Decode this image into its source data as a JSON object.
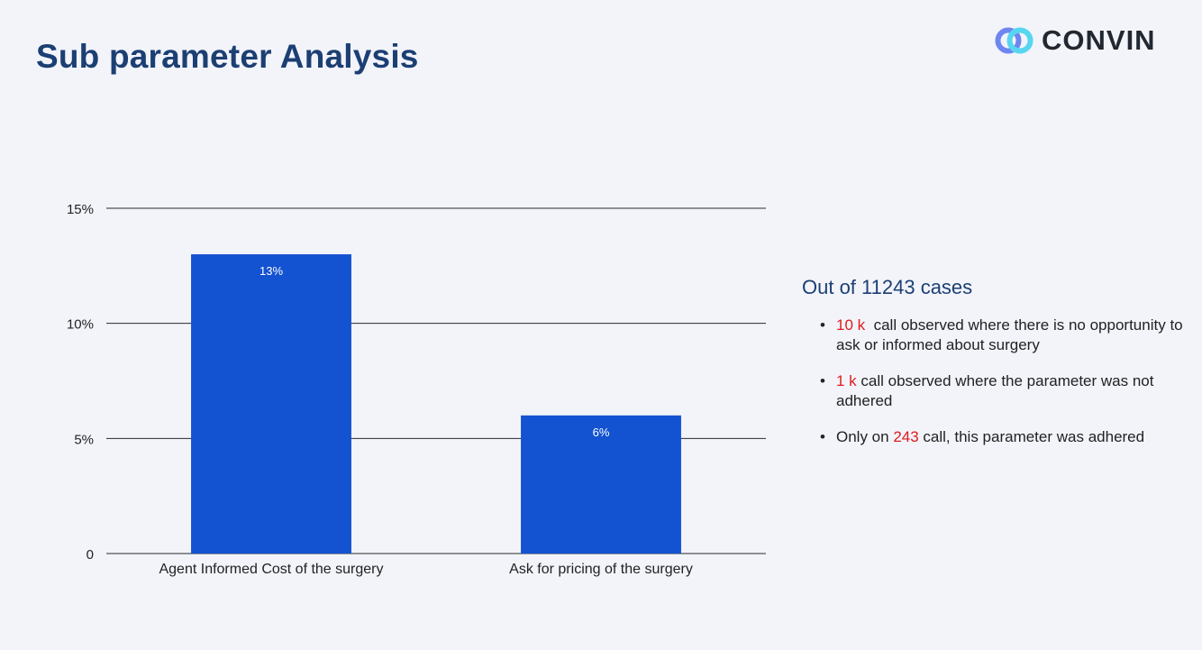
{
  "page": {
    "title": "Sub parameter Analysis"
  },
  "logo": {
    "text": "CONVIN"
  },
  "colors": {
    "bar": "#1352d0",
    "highlight": "#e01b1b",
    "title": "#1c3f73",
    "background": "#f2f4fa"
  },
  "summary": {
    "heading": "Out of 11243 cases",
    "bullets": [
      {
        "highlight": "10 k",
        "pre": "",
        "post": "  call observed where there is no opportunity to ask or informed about surgery"
      },
      {
        "highlight": "1 k",
        "pre": "",
        "post": " call observed where the parameter was not adhered"
      },
      {
        "highlight": "243",
        "pre": "Only on ",
        "post": " call, this parameter was adhered"
      }
    ]
  },
  "chart_data": {
    "type": "bar",
    "categories": [
      "Agent Informed Cost of the surgery",
      "Ask for pricing of the surgery"
    ],
    "values": [
      13,
      6
    ],
    "data_labels": [
      "13%",
      "6%"
    ],
    "title": "",
    "xlabel": "",
    "ylabel": "",
    "ylim": [
      0,
      15
    ],
    "yticks": [
      0,
      5,
      10,
      15
    ],
    "ytick_labels": [
      "0",
      "5%",
      "10%",
      "15%"
    ],
    "grid": true,
    "legend": "none"
  }
}
